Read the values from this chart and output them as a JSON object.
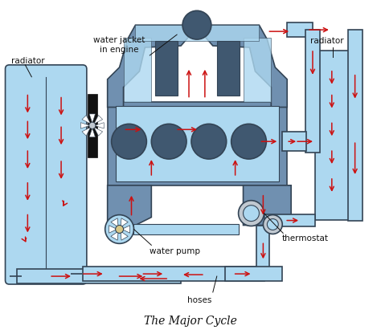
{
  "title": "The Major Cycle",
  "title_fontsize": 10,
  "labels": {
    "water_jacket": "water jacket\nin engine",
    "radiator_left": "radiator",
    "radiator_right": "radiator",
    "water_pump": "water pump",
    "thermostat": "thermostat",
    "hoses": "hoses"
  },
  "colors": {
    "light_blue": "#add8f0",
    "mid_blue": "#7ab0d0",
    "dark_gray_blue": "#6080a0",
    "engine_body": "#7090b0",
    "engine_dark": "#506880",
    "engine_darker": "#405870",
    "pipe_blue": "#90c0e0",
    "arrow_red": "#cc1111",
    "outline": "#334455",
    "white": "#ffffff",
    "black": "#111111",
    "pump_beige": "#d8c888",
    "gray_light": "#c0c8d0",
    "rad_right_bg": "#b8d8f0"
  }
}
